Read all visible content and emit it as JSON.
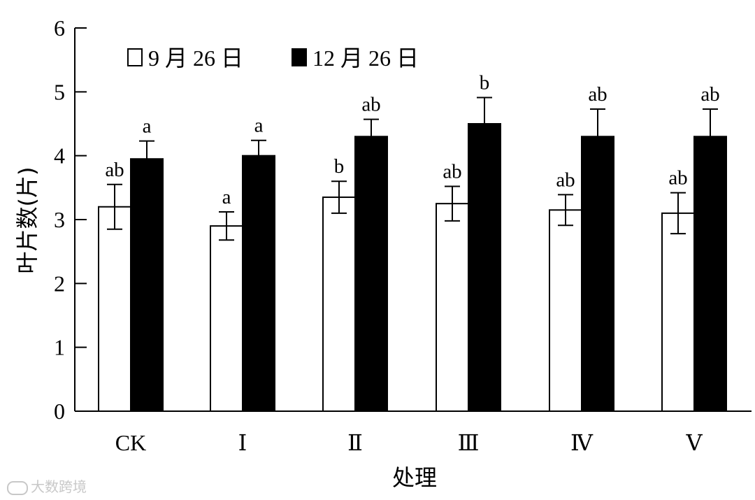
{
  "chart_data": {
    "type": "bar",
    "ylabel": "叶片数(片)",
    "xlabel": "处理",
    "ylim": [
      0,
      6
    ],
    "yticks": [
      "0",
      "1",
      "2",
      "3",
      "4",
      "5",
      "6"
    ],
    "categories": [
      "CK",
      "Ⅰ",
      "Ⅱ",
      "Ⅲ",
      "Ⅳ",
      "Ⅴ"
    ],
    "legend_position": "top-left",
    "grid": false,
    "series": [
      {
        "name": "9 月 26 日",
        "fill": "#ffffff",
        "values": [
          3.2,
          2.9,
          3.35,
          3.25,
          3.15,
          3.1
        ],
        "errors": [
          0.35,
          0.22,
          0.25,
          0.27,
          0.24,
          0.32
        ],
        "significance": [
          "ab",
          "a",
          "b",
          "ab",
          "ab",
          "ab"
        ]
      },
      {
        "name": "12 月 26 日",
        "fill": "#000000",
        "values": [
          3.95,
          4.0,
          4.3,
          4.5,
          4.3,
          4.3
        ],
        "errors": [
          0.28,
          0.24,
          0.27,
          0.41,
          0.43,
          0.43
        ],
        "significance": [
          "a",
          "a",
          "ab",
          "b",
          "ab",
          "ab"
        ]
      }
    ]
  },
  "watermark": "大数跨境"
}
